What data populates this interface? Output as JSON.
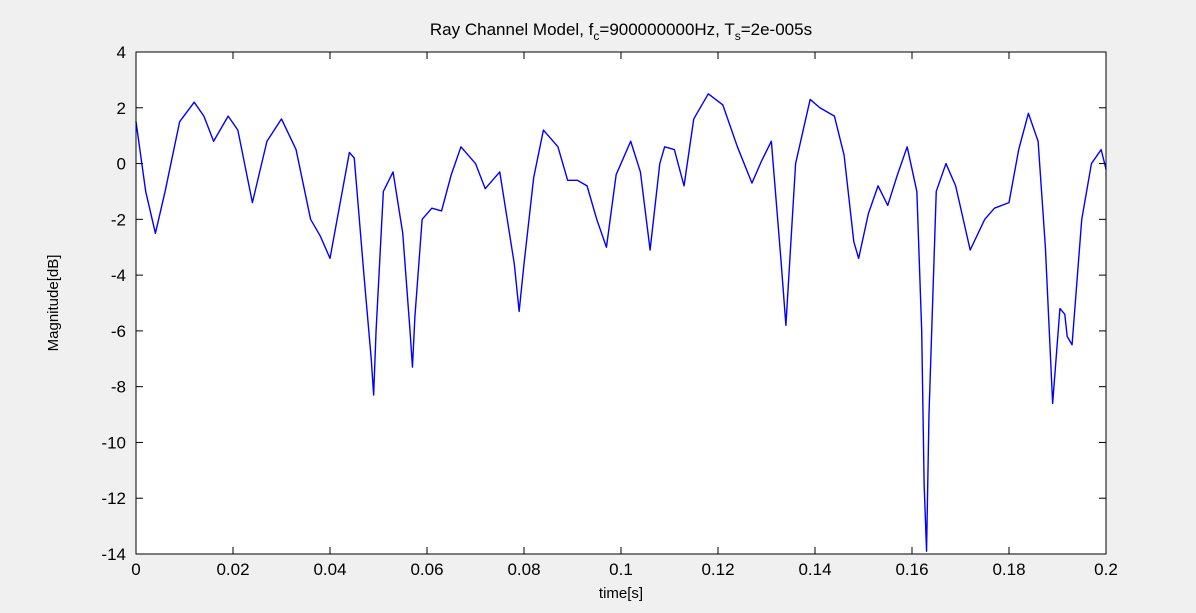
{
  "chart_data": {
    "type": "line",
    "title": {
      "prefix": "Ray Channel Model, f",
      "fc_sub": "c",
      "fc_value": "=900000000Hz, T",
      "ts_sub": "s",
      "ts_value": "=2e-005s"
    },
    "xlabel": "time[s]",
    "ylabel": "Magnitude[dB]",
    "xlim": [
      0,
      0.2
    ],
    "ylim": [
      -14,
      4
    ],
    "x_ticks": [
      0,
      0.02,
      0.04,
      0.06,
      0.08,
      0.1,
      0.12,
      0.14,
      0.16,
      0.18,
      0.2
    ],
    "x_tick_labels": [
      "0",
      "0.02",
      "0.04",
      "0.06",
      "0.08",
      "0.1",
      "0.12",
      "0.14",
      "0.16",
      "0.18",
      "0.2"
    ],
    "y_ticks": [
      4,
      2,
      0,
      -2,
      -4,
      -6,
      -8,
      -10,
      -12,
      -14
    ],
    "y_tick_labels": [
      "4",
      "2",
      "0",
      "-2",
      "-4",
      "-6",
      "-8",
      "-10",
      "-12",
      "-14"
    ],
    "grid": false,
    "series": [
      {
        "color": "#0000ff",
        "x": [
          0,
          0.002,
          0.004,
          0.006,
          0.009,
          0.012,
          0.014,
          0.016,
          0.019,
          0.021,
          0.024,
          0.027,
          0.03,
          0.033,
          0.036,
          0.038,
          0.04,
          0.042,
          0.044,
          0.045,
          0.047,
          0.0485,
          0.049,
          0.0495,
          0.051,
          0.053,
          0.055,
          0.0565,
          0.057,
          0.0575,
          0.059,
          0.061,
          0.063,
          0.065,
          0.067,
          0.07,
          0.072,
          0.075,
          0.078,
          0.079,
          0.08,
          0.082,
          0.084,
          0.087,
          0.089,
          0.091,
          0.093,
          0.095,
          0.097,
          0.099,
          0.102,
          0.104,
          0.106,
          0.108,
          0.109,
          0.111,
          0.113,
          0.115,
          0.118,
          0.121,
          0.124,
          0.127,
          0.129,
          0.131,
          0.133,
          0.134,
          0.136,
          0.139,
          0.141,
          0.144,
          0.146,
          0.148,
          0.149,
          0.151,
          0.153,
          0.155,
          0.157,
          0.159,
          0.161,
          0.162,
          0.1625,
          0.163,
          0.1635,
          0.165,
          0.167,
          0.169,
          0.172,
          0.175,
          0.177,
          0.18,
          0.182,
          0.184,
          0.186,
          0.1875,
          0.189,
          0.1905,
          0.1915,
          0.192,
          0.193,
          0.195,
          0.197,
          0.199,
          0.2
        ],
        "y": [
          1.5,
          -1.0,
          -2.5,
          -1.0,
          1.5,
          2.2,
          1.7,
          0.8,
          1.7,
          1.2,
          -1.4,
          0.8,
          1.6,
          0.5,
          -2.0,
          -2.6,
          -3.4,
          -1.5,
          0.4,
          0.2,
          -4.0,
          -7.0,
          -8.3,
          -6.0,
          -1.0,
          -0.3,
          -2.5,
          -6.0,
          -7.3,
          -5.5,
          -2.0,
          -1.6,
          -1.7,
          -0.4,
          0.6,
          0.0,
          -0.9,
          -0.3,
          -3.6,
          -5.3,
          -3.6,
          -0.5,
          1.2,
          0.6,
          -0.6,
          -0.6,
          -0.8,
          -2.0,
          -3.0,
          -0.4,
          0.8,
          -0.3,
          -3.1,
          0.0,
          0.6,
          0.5,
          -0.8,
          1.6,
          2.5,
          2.1,
          0.6,
          -0.7,
          0.1,
          0.8,
          -3.5,
          -5.8,
          0.0,
          2.3,
          2.0,
          1.7,
          0.3,
          -2.8,
          -3.4,
          -1.8,
          -0.8,
          -1.5,
          -0.4,
          0.6,
          -1.0,
          -6.0,
          -11.5,
          -13.9,
          -9.0,
          -1.0,
          0.0,
          -0.8,
          -3.1,
          -2.0,
          -1.6,
          -1.4,
          0.5,
          1.8,
          0.8,
          -3.0,
          -8.6,
          -5.2,
          -5.4,
          -6.2,
          -6.5,
          -2.0,
          0.0,
          0.5,
          -0.2
        ]
      }
    ]
  }
}
